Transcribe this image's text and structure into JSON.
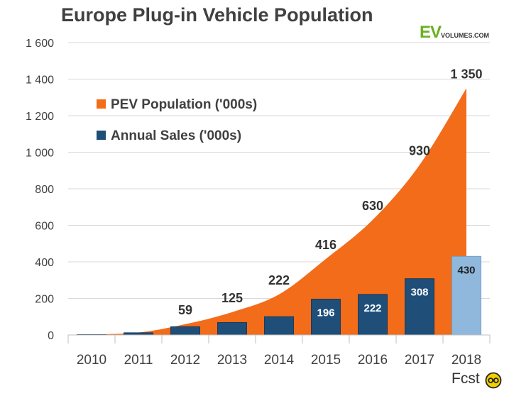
{
  "title": "Europe Plug-in Vehicle Population",
  "brand": {
    "ev": "EV",
    "volumes": "VOLUMES.COM",
    "color": "#6ab023"
  },
  "source": "Fcst",
  "colors": {
    "population": "#f26c1a",
    "sales": "#1f4e79",
    "forecast": "#8fb8dc",
    "grid": "#d9d9d9",
    "text": "#404040"
  },
  "chart_data": {
    "type": "area",
    "title": "Europe Plug-in Vehicle Population",
    "categories": [
      "2010",
      "2011",
      "2012",
      "2013",
      "2014",
      "2015",
      "2016",
      "2017",
      "2018"
    ],
    "ylim": [
      0,
      1600
    ],
    "yticks": [
      0,
      200,
      400,
      600,
      800,
      1000,
      1200,
      1400,
      1600
    ],
    "ytick_labels": [
      "0",
      "200",
      "400",
      "600",
      "800",
      "1 000",
      "1 200",
      "1 400",
      "1 600"
    ],
    "grid": true,
    "legend_position": "top-left",
    "series": [
      {
        "name": "PEV Population ('000s)",
        "type": "area",
        "values": [
          3,
          13,
          59,
          125,
          222,
          416,
          630,
          930,
          1350
        ],
        "labels": [
          "",
          "",
          "59",
          "125",
          "222",
          "416",
          "630",
          "930",
          "1 350"
        ]
      },
      {
        "name": "Annual Sales ('000s)",
        "type": "bar",
        "values": [
          2,
          12,
          45,
          68,
          100,
          196,
          222,
          308,
          430
        ],
        "labels": [
          "",
          "",
          "",
          "",
          "",
          "196",
          "222",
          "308",
          "430"
        ],
        "forecast_index": 8
      }
    ]
  }
}
